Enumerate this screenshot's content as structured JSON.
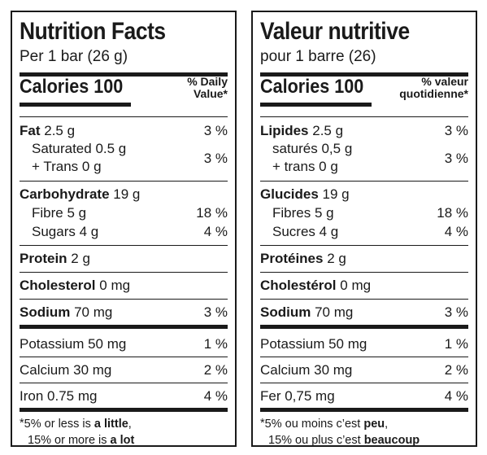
{
  "english": {
    "title": "Nutrition Facts",
    "serving": "Per 1 bar (26 g)",
    "calories_label": "Calories",
    "calories_value": "100",
    "dv_header_line1": "% Daily",
    "dv_header_line2": "Value*",
    "fat_label": "Fat",
    "fat_amount": "2.5 g",
    "fat_pct": "3 %",
    "sat_label": "Saturated 0.5 g",
    "trans_label": "+ Trans 0 g",
    "sat_trans_pct": "3 %",
    "carb_label": "Carbohydrate",
    "carb_amount": "19 g",
    "fibre_label": "Fibre 5 g",
    "fibre_pct": "18 %",
    "sugars_label": "Sugars 4 g",
    "sugars_pct": "4 %",
    "protein_label": "Protein",
    "protein_amount": "2 g",
    "chol_label": "Cholesterol",
    "chol_amount": "0 mg",
    "sodium_label": "Sodium",
    "sodium_amount": "70 mg",
    "sodium_pct": "3 %",
    "potassium_label": "Potassium 50 mg",
    "potassium_pct": "1 %",
    "calcium_label": "Calcium 30 mg",
    "calcium_pct": "2 %",
    "iron_label": "Iron 0.75 mg",
    "iron_pct": "4 %",
    "foot_star": "*",
    "foot_line1_a": "5% or less is ",
    "foot_line1_b": "a little",
    "foot_line1_c": ",",
    "foot_line2_a": "15% or more is ",
    "foot_line2_b": "a lot"
  },
  "french": {
    "title": "Valeur nutritive",
    "serving": "pour 1 barre (26)",
    "calories_label": "Calories",
    "calories_value": "100",
    "dv_header_line1": "% valeur",
    "dv_header_line2": "quotidienne*",
    "fat_label": "Lipides",
    "fat_amount": "2.5 g",
    "fat_pct": "3 %",
    "sat_label": "saturés 0,5 g",
    "trans_label": "+ trans 0 g",
    "sat_trans_pct": "3 %",
    "carb_label": "Glucides",
    "carb_amount": "19 g",
    "fibre_label": "Fibres 5 g",
    "fibre_pct": "18 %",
    "sugars_label": "Sucres 4 g",
    "sugars_pct": "4 %",
    "protein_label": "Protéines",
    "protein_amount": "2 g",
    "chol_label": "Cholestérol",
    "chol_amount": "0 mg",
    "sodium_label": "Sodium",
    "sodium_amount": "70 mg",
    "sodium_pct": "3 %",
    "potassium_label": "Potassium 50 mg",
    "potassium_pct": "1 %",
    "calcium_label": "Calcium 30 mg",
    "calcium_pct": "2 %",
    "iron_label": "Fer 0,75 mg",
    "iron_pct": "4 %",
    "foot_star": "*",
    "foot_line1_a": "5% ou moins c’est ",
    "foot_line1_b": "peu",
    "foot_line1_c": ",",
    "foot_line2_a": "15% ou plus c’est ",
    "foot_line2_b": "beaucoup"
  }
}
